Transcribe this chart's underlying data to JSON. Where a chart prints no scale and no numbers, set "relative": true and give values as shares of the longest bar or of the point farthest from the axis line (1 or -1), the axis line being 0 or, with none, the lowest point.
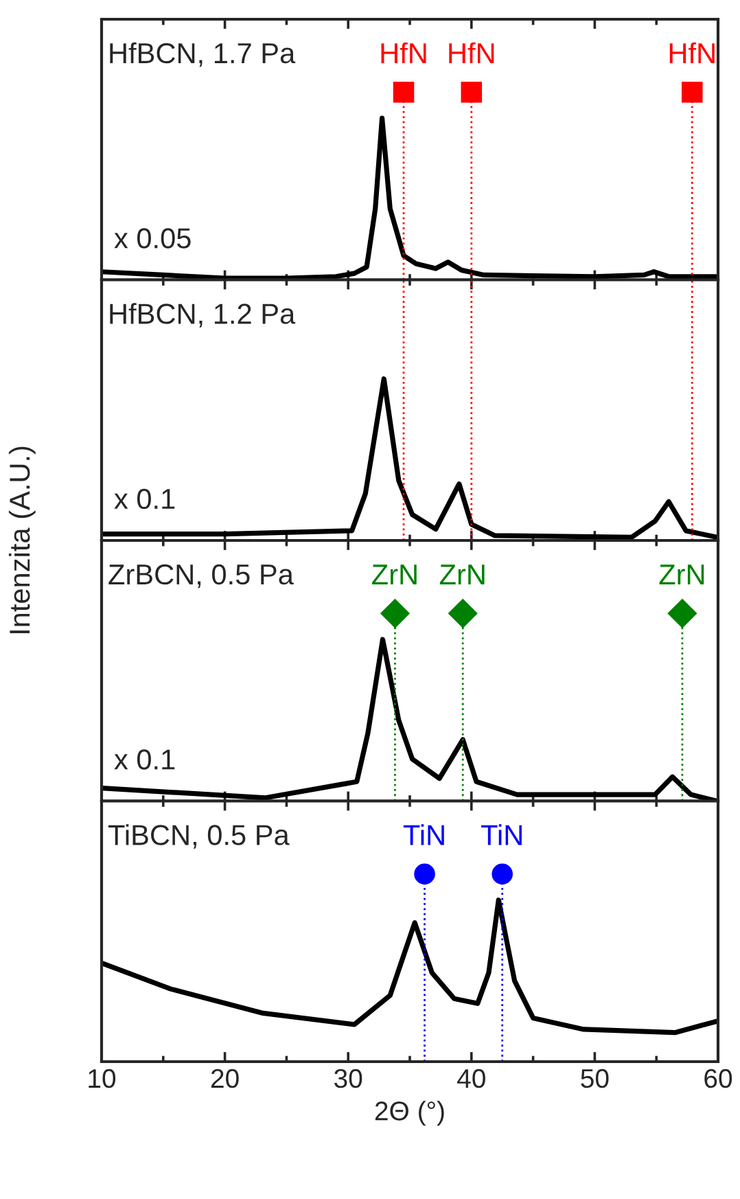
{
  "chart_data": [
    {
      "type": "line",
      "relative": true,
      "ylabel": "Intenzita (A.U.)",
      "xlim": [
        10,
        60
      ],
      "xticks": [
        10,
        20,
        30,
        40,
        50,
        60
      ],
      "tick_labels": false,
      "line_style": "solid",
      "annotations": [
        "HfBCN, 1.7 Pa",
        "x 0.05"
      ],
      "ref_lines": [
        {
          "axis": "x",
          "value": 34.5,
          "label": "HfN",
          "color": "#ff0000",
          "line_style": "dotted"
        },
        {
          "axis": "x",
          "value": 40.0,
          "label": "HfN",
          "color": "#ff0000",
          "line_style": "dotted"
        },
        {
          "axis": "x",
          "value": 57.9,
          "label": "HfN",
          "color": "#ff0000",
          "line_style": "dotted"
        }
      ],
      "series": [
        {
          "color": "#000000",
          "x": [
            10,
            15,
            20,
            25,
            29,
            30.5,
            31.5,
            32.2,
            32.75,
            33.4,
            34.5,
            35.5,
            37.1,
            38.1,
            39.2,
            41,
            50,
            54,
            54.8,
            56,
            60
          ],
          "values": [
            0.05,
            0.03,
            0.01,
            0.01,
            0.02,
            0.04,
            0.08,
            0.44,
            1,
            0.44,
            0.15,
            0.1,
            0.07,
            0.11,
            0.06,
            0.03,
            0.02,
            0.03,
            0.05,
            0.02,
            0.02
          ]
        }
      ]
    },
    {
      "type": "line",
      "relative": true,
      "xlim": [
        10,
        60
      ],
      "xticks": [
        10,
        20,
        30,
        40,
        50,
        60
      ],
      "tick_labels": false,
      "line_style": "solid",
      "annotations": [
        "HfBCN, 1.2 Pa",
        "x 0.1"
      ],
      "ref_lines": [
        {
          "axis": "x",
          "value": 34.5,
          "color": "#ff0000",
          "line_style": "dotted"
        },
        {
          "axis": "x",
          "value": 40.0,
          "color": "#ff0000",
          "line_style": "dotted"
        },
        {
          "axis": "x",
          "value": 57.9,
          "color": "#ff0000",
          "line_style": "dotted"
        }
      ],
      "series": [
        {
          "color": "#000000",
          "x": [
            10,
            20,
            30.3,
            31.4,
            32.9,
            34.1,
            35.2,
            37.1,
            39.0,
            40.0,
            41.9,
            53,
            54.9,
            56.0,
            57.4,
            59.9
          ],
          "values": [
            0.04,
            0.04,
            0.06,
            0.29,
            1,
            0.37,
            0.16,
            0.07,
            0.35,
            0.1,
            0.03,
            0.02,
            0.12,
            0.24,
            0.06,
            0.02
          ]
        }
      ]
    },
    {
      "type": "line",
      "relative": true,
      "xlim": [
        10,
        60
      ],
      "xticks": [
        10,
        20,
        30,
        40,
        50,
        60
      ],
      "tick_labels": false,
      "line_style": "solid",
      "annotations": [
        "ZrBCN, 0.5 Pa",
        "x 0.1"
      ],
      "ref_lines": [
        {
          "axis": "x",
          "value": 33.8,
          "label": "ZrN",
          "color": "#008000",
          "line_style": "dotted"
        },
        {
          "axis": "x",
          "value": 39.3,
          "label": "ZrN",
          "color": "#008000",
          "line_style": "dotted"
        },
        {
          "axis": "x",
          "value": 57.1,
          "label": "ZrN",
          "color": "#008000",
          "line_style": "dotted"
        }
      ],
      "series": [
        {
          "color": "#000000",
          "x": [
            10,
            23.3,
            30.7,
            31.6,
            32.8,
            34.1,
            35.2,
            37.4,
            39.3,
            40.4,
            43.7,
            54.9,
            56.3,
            57.8,
            59.9
          ],
          "values": [
            0.08,
            0.02,
            0.12,
            0.42,
            1,
            0.5,
            0.26,
            0.14,
            0.38,
            0.12,
            0.04,
            0.04,
            0.15,
            0.04,
            0
          ]
        }
      ]
    },
    {
      "type": "line",
      "relative": true,
      "xlabel": "2Θ (°)",
      "xlim": [
        10,
        60
      ],
      "xticks": [
        10,
        20,
        30,
        40,
        50,
        60
      ],
      "tick_labels": "x",
      "line_style": "solid",
      "annotations": [
        "TiBCN, 0.5 Pa"
      ],
      "ref_lines": [
        {
          "axis": "x",
          "value": 36.2,
          "label": "TiN",
          "color": "#0000ff",
          "line_style": "dotted"
        },
        {
          "axis": "x",
          "value": 42.5,
          "label": "TiN",
          "color": "#0000ff",
          "line_style": "dotted"
        }
      ],
      "series": [
        {
          "color": "#000000",
          "x": [
            10,
            15.6,
            23.1,
            30.5,
            33.4,
            35.4,
            36.8,
            38.6,
            40.5,
            41.4,
            42.2,
            43.5,
            45.0,
            49.1,
            56.5,
            59.9
          ],
          "values": [
            0.61,
            0.45,
            0.3,
            0.23,
            0.41,
            0.86,
            0.55,
            0.39,
            0.36,
            0.55,
            1,
            0.5,
            0.27,
            0.2,
            0.18,
            0.25
          ]
        }
      ]
    }
  ]
}
